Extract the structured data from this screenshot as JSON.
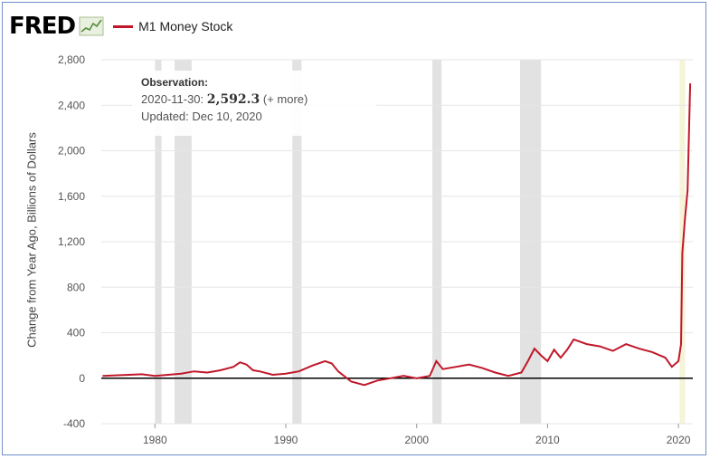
{
  "header": {
    "logo": "FRED",
    "logo_icon": "trend-chart-icon",
    "legend_label": "M1 Money Stock",
    "series_color": "#c0182a"
  },
  "tooltip": {
    "title": "Observation:",
    "date": "2020-11-30:",
    "value": "2,592.3",
    "more": "(+ more)",
    "updated": "Updated: Dec 10, 2020"
  },
  "chart_data": {
    "type": "line",
    "ylabel": "Change from Year Ago, Billions of Dollars",
    "xlim": [
      1975.9,
      2021.1
    ],
    "ylim": [
      -400,
      2800
    ],
    "yticks": [
      -400,
      0,
      400,
      800,
      1200,
      1600,
      2000,
      2400,
      2800
    ],
    "ytick_labels": [
      "-400",
      "0",
      "400",
      "800",
      "1,200",
      "1,600",
      "2,000",
      "2,400",
      "2,800"
    ],
    "xticks": [
      1980,
      1990,
      2000,
      2010,
      2020
    ],
    "xtick_labels": [
      "1980",
      "1990",
      "2000",
      "2010",
      "2020"
    ],
    "grid": "horizontal",
    "recessions": [
      [
        1980.0,
        1980.5
      ],
      [
        1981.5,
        1982.8
      ],
      [
        1990.5,
        1991.2
      ],
      [
        2001.2,
        2001.9
      ],
      [
        2007.9,
        2009.5
      ],
      [
        2020.1,
        2020.4
      ]
    ],
    "series": [
      {
        "name": "M1 Money Stock",
        "x": [
          1976,
          1977,
          1978,
          1979,
          1980,
          1981,
          1982,
          1983,
          1984,
          1985,
          1986,
          1986.5,
          1987,
          1987.5,
          1988,
          1989,
          1990,
          1991,
          1992,
          1993,
          1993.5,
          1994,
          1995,
          1996,
          1996.5,
          1997,
          1998,
          1999,
          2000,
          2001,
          2001.5,
          2002,
          2003,
          2004,
          2005,
          2006,
          2007,
          2008,
          2008.5,
          2009,
          2009.5,
          2010,
          2010.5,
          2011,
          2011.5,
          2012,
          2013,
          2014,
          2015,
          2016,
          2017,
          2018,
          2019,
          2019.5,
          2020,
          2020.2,
          2020.3,
          2020.5,
          2020.7,
          2020.9
        ],
        "y": [
          20,
          25,
          30,
          35,
          20,
          30,
          40,
          60,
          50,
          70,
          100,
          140,
          120,
          70,
          60,
          30,
          40,
          60,
          110,
          150,
          130,
          60,
          -30,
          -60,
          -40,
          -20,
          0,
          20,
          0,
          20,
          150,
          80,
          100,
          120,
          90,
          50,
          20,
          50,
          150,
          260,
          200,
          150,
          250,
          180,
          250,
          340,
          300,
          280,
          240,
          300,
          260,
          230,
          180,
          100,
          150,
          300,
          1100,
          1400,
          1650,
          2592.3
        ]
      }
    ]
  }
}
